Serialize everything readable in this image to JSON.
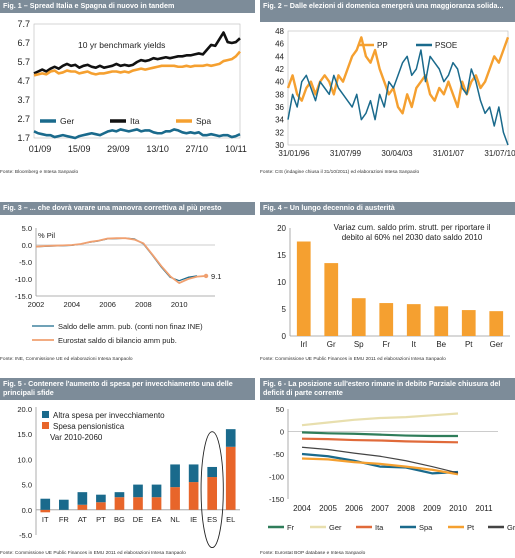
{
  "colors": {
    "header_bg": "#7d8c99",
    "orange": "#f5a030",
    "dark_orange": "#e8652a",
    "teal": "#1a6a8c",
    "black": "#111111",
    "green": "#2f7d5a",
    "cream": "#e8dfae",
    "red_orange": "#e06a3a",
    "salmon": "#f0a070",
    "dark_gray": "#444444"
  },
  "panels": [
    {
      "title": "Fig. 1 – Spread Italia e Spagna di nuovo in tandem",
      "source": "Fonte: Bloomberg e Intesa Sanpaolo",
      "chart_data": {
        "type": "line",
        "annotation": "10 yr benchmark yields",
        "x_tick_labels": [
          "01/09",
          "15/09",
          "29/09",
          "13/10",
          "27/10",
          "10/11"
        ],
        "y_tick_labels": [
          "1.7",
          "2.7",
          "3.7",
          "4.7",
          "5.7",
          "6.7",
          "7.7"
        ],
        "ylim": [
          1.7,
          7.7
        ],
        "x": [
          0,
          1,
          2,
          3,
          4,
          5,
          6,
          7,
          8,
          9,
          10,
          11,
          12,
          13,
          14,
          15,
          16,
          17,
          18,
          19,
          20,
          21,
          22,
          23,
          24,
          25,
          26,
          27,
          28,
          29,
          30,
          31,
          32,
          33,
          34,
          35,
          36,
          37,
          38,
          39,
          40,
          41,
          42,
          43,
          44,
          45,
          46,
          47,
          48,
          49,
          50
        ],
        "series": [
          {
            "name": "Ger",
            "color": "#1a6a8c",
            "values": [
              2.05,
              1.95,
              1.9,
              1.85,
              1.85,
              1.75,
              1.8,
              1.85,
              1.8,
              1.75,
              1.7,
              1.8,
              1.85,
              1.9,
              1.95,
              1.9,
              1.85,
              1.95,
              2.05,
              2.1,
              2.05,
              2.15,
              2.1,
              2.05,
              2.1,
              2.15,
              2.05,
              2.1,
              2.1,
              2.0,
              1.95,
              1.95,
              2.05,
              2.05,
              2.15,
              2.1,
              2.0,
              1.95,
              2.0,
              1.95,
              2.0,
              1.85,
              1.85,
              1.9,
              1.85,
              1.8,
              1.85,
              1.85,
              1.75,
              1.8,
              1.9
            ]
          },
          {
            "name": "Ita",
            "color": "#111111",
            "values": [
              5.1,
              5.2,
              5.3,
              5.2,
              5.35,
              5.45,
              5.35,
              5.5,
              5.6,
              5.5,
              5.55,
              5.4,
              5.5,
              5.55,
              5.45,
              5.4,
              5.5,
              5.4,
              5.45,
              5.5,
              5.6,
              5.5,
              5.55,
              5.5,
              5.55,
              5.7,
              5.8,
              5.75,
              5.8,
              5.9,
              5.85,
              5.9,
              5.95,
              5.9,
              5.95,
              6.0,
              6.0,
              6.05,
              6.05,
              6.1,
              6.15,
              6.1,
              6.35,
              6.6,
              6.55,
              6.9,
              7.25,
              6.75,
              6.7,
              6.75,
              6.95
            ]
          },
          {
            "name": "Spa",
            "color": "#f5a030",
            "values": [
              5.0,
              5.05,
              5.1,
              5.05,
              5.2,
              5.25,
              5.1,
              5.15,
              5.25,
              5.2,
              5.2,
              5.1,
              5.15,
              5.2,
              5.1,
              5.05,
              5.1,
              5.1,
              5.15,
              5.2,
              5.2,
              5.15,
              5.2,
              5.15,
              5.25,
              5.3,
              5.35,
              5.3,
              5.35,
              5.4,
              5.45,
              5.5,
              5.5,
              5.5,
              5.5,
              5.45,
              5.45,
              5.5,
              5.45,
              5.5,
              5.5,
              5.5,
              5.55,
              5.5,
              5.55,
              5.6,
              5.75,
              5.8,
              5.85,
              6.0,
              6.25
            ]
          }
        ]
      }
    },
    {
      "title": "Fig. 2 – Dalle elezioni di domenica emergerà una maggioranza solida...",
      "source": "Fonte: CIS (indagine chiusa il 31/10/2011) ed elaborazioni Intesa Sanpaolo",
      "chart_data": {
        "type": "line",
        "x_tick_labels": [
          "31/01/96",
          "31/07/99",
          "30/04/03",
          "31/01/07",
          "31/07/10"
        ],
        "y_tick_labels": [
          "30",
          "32",
          "34",
          "36",
          "38",
          "40",
          "42",
          "44",
          "46",
          "48"
        ],
        "ylim": [
          30,
          48
        ],
        "x": [
          0,
          1,
          2,
          3,
          4,
          5,
          6,
          7,
          8,
          9,
          10,
          11,
          12,
          13,
          14,
          15,
          16,
          17,
          18,
          19,
          20,
          21,
          22,
          23,
          24,
          25,
          26,
          27,
          28,
          29,
          30,
          31,
          32,
          33,
          34,
          35,
          36,
          37,
          38,
          39,
          40,
          41,
          42,
          43,
          44,
          45,
          46,
          47,
          48
        ],
        "series": [
          {
            "name": "PP",
            "color": "#f5a030",
            "values": [
              39,
              41,
              38,
              37,
              39,
              40,
              38,
              40,
              41,
              40,
              38,
              41,
              40,
              42,
              44,
              45,
              47,
              44,
              43,
              45,
              42,
              40,
              38,
              39,
              36,
              35,
              38,
              36,
              39,
              40,
              41,
              38,
              37,
              39,
              38,
              40,
              38,
              36,
              40,
              38,
              40,
              41,
              39,
              40,
              42,
              44,
              43,
              45,
              47
            ]
          },
          {
            "name": "PSOE",
            "color": "#1a6a8c",
            "values": [
              34,
              38,
              36,
              40,
              41,
              39,
              37,
              40,
              39,
              38,
              41,
              39,
              38,
              37,
              36,
              38,
              34,
              35,
              37,
              34,
              38,
              36,
              40,
              39,
              41,
              43,
              44,
              41,
              42,
              45,
              40,
              44,
              43,
              42,
              40,
              41,
              43,
              42,
              39,
              38,
              42,
              40,
              37,
              35,
              36,
              33,
              36,
              32,
              30
            ]
          }
        ]
      }
    },
    {
      "title": "Fig. 3 – ... che dovrà varare una manovra correttiva al più presto",
      "source": "Fonte: INE, Commissione UE ed elaborazioni Intesa Sanpaolo",
      "chart_data": {
        "type": "line",
        "ylabel": "% Pil",
        "x_tick_labels": [
          "2002",
          "2004",
          "2006",
          "2008",
          "2010"
        ],
        "y_tick_labels": [
          "5.0",
          "0.0",
          "-5.0",
          "-10.0",
          "-15.0"
        ],
        "xlim": [
          2002,
          2012
        ],
        "ylim": [
          -15,
          5
        ],
        "annotation": "9.1",
        "series": [
          {
            "name": "Saldo delle amm. pub. (conti non  finaz INE)",
            "color": "#1a6a8c",
            "x": [
              2002,
              2002.5,
              2003,
              2003.5,
              2004,
              2004.5,
              2005,
              2005.5,
              2006,
              2006.5,
              2007,
              2007.5,
              2008,
              2008.5,
              2009,
              2009.5,
              2010,
              2010.5,
              2011
            ],
            "values": [
              -0.5,
              -0.4,
              -0.3,
              -0.2,
              -0.1,
              0.3,
              0.8,
              1.2,
              1.8,
              1.9,
              2.0,
              1.8,
              0.3,
              -3.0,
              -6.5,
              -9.5,
              -10.5,
              -9.5,
              -9.1
            ]
          },
          {
            "name": "Eurostat saldo di bilancio amm pub.",
            "color": "#f0a070",
            "x": [
              2002,
              2002.5,
              2003,
              2003.5,
              2004,
              2004.5,
              2005,
              2005.5,
              2006,
              2006.5,
              2007,
              2007.5,
              2008,
              2008.5,
              2009,
              2009.5,
              2010,
              2010.5,
              2011,
              2011.5
            ],
            "values": [
              -0.5,
              -0.3,
              -0.2,
              -0.1,
              0.0,
              0.3,
              0.9,
              1.3,
              1.9,
              2.0,
              2.0,
              1.6,
              0.5,
              -2.8,
              -6.2,
              -9.2,
              -11.2,
              -10.0,
              -9.3,
              -9.1
            ]
          }
        ]
      }
    },
    {
      "title": "Fig. 4 – Un lungo decennio di austerità",
      "source": "Fonte: Commissione UE Public Finances in EMU 2011 ed elaborazioni Intesa Sanpaolo",
      "chart_data": {
        "type": "bar",
        "title": "Variaz cum. saldo prim. strutt. per riportare il debito al 60% nel 2030 dato saldo 2010",
        "categories": [
          "Irl",
          "Gr",
          "Sp",
          "Fr",
          "It",
          "Be",
          "Pt",
          "Ger"
        ],
        "values": [
          17.5,
          13.5,
          7.0,
          6.1,
          5.9,
          5.5,
          4.8,
          4.6
        ],
        "y_tick_labels": [
          "0",
          "5",
          "10",
          "15",
          "20"
        ],
        "ylim": [
          0,
          20
        ],
        "color": "#f5a030"
      }
    },
    {
      "title": "Fig. 5 - Contenere l'aumento di spesa per invecchiamento una delle principali sfide",
      "source": "Fonte: Commissione UE Public Finances in EMU 2011 ed elaborazioni Intesa Sanpaolo",
      "chart_data": {
        "type": "bar",
        "annotation": "Var 2010-2060",
        "categories": [
          "IT",
          "FR",
          "AT",
          "PT",
          "BG",
          "DE",
          "EA",
          "NL",
          "IE",
          "ES",
          "EL"
        ],
        "y_tick_labels": [
          "20.0",
          "15.0",
          "10.0",
          "5.0",
          "0.0",
          "-5.0"
        ],
        "ylim": [
          -5,
          20
        ],
        "series": [
          {
            "name": "Spesa pensionistica",
            "color": "#e8652a",
            "values": [
              -0.5,
              0.0,
              1.0,
              1.5,
              2.5,
              2.5,
              2.5,
              4.5,
              5.5,
              6.5,
              12.5
            ]
          },
          {
            "name": "Altra spesa per invecchiamento",
            "color": "#1a6a8c",
            "values": [
              2.2,
              2.0,
              2.5,
              1.5,
              1.0,
              2.5,
              2.5,
              4.5,
              3.5,
              2.0,
              3.5
            ]
          }
        ],
        "highlight": "ES"
      }
    },
    {
      "title": "Fig. 6 - La posizione sull'estero rimane in debito Parziale chiusura del deficit di parte corrente",
      "source": "Fonte: Eurostat BOP database e Intesa Sanpaolo",
      "chart_data": {
        "type": "line",
        "x_tick_labels": [
          "2004",
          "2005",
          "2006",
          "2007",
          "2008",
          "2009",
          "2010",
          "2011"
        ],
        "y_tick_labels": [
          "50",
          "0",
          "-50",
          "-100",
          "-150"
        ],
        "ylim": [
          -150,
          50
        ],
        "x": [
          2004,
          2005,
          2006,
          2007,
          2008,
          2009,
          2010
        ],
        "series": [
          {
            "name": "Fr",
            "color": "#2f7d5a",
            "values": [
              -2,
              -4,
              -5,
              -7,
              -9,
              -10,
              -10
            ]
          },
          {
            "name": "Ger",
            "color": "#e8dfae",
            "values": [
              14,
              20,
              26,
              30,
              32,
              36,
              40
            ]
          },
          {
            "name": "Ita",
            "color": "#e06a3a",
            "values": [
              -16,
              -17,
              -19,
              -20,
              -22,
              -23,
              -24
            ]
          },
          {
            "name": "Spa",
            "color": "#1a6a8c",
            "values": [
              -50,
              -55,
              -65,
              -78,
              -80,
              -93,
              -90
            ]
          },
          {
            "name": "Pt",
            "color": "#f5a030",
            "values": [
              -60,
              -62,
              -68,
              -72,
              -78,
              -85,
              -95
            ]
          },
          {
            "name": "Gr",
            "color": "#444444",
            "values": [
              -35,
              -40,
              -48,
              -55,
              -65,
              -78,
              -92
            ]
          }
        ]
      }
    }
  ]
}
